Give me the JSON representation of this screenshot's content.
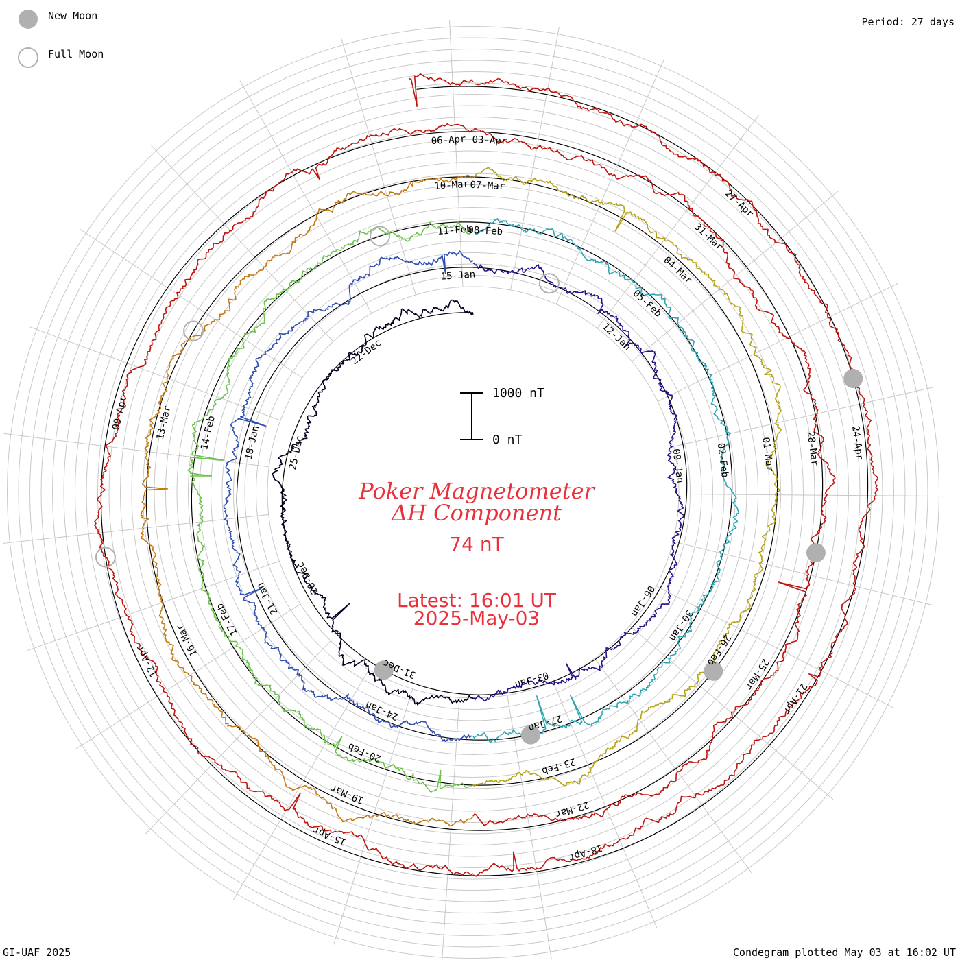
{
  "title": "Poker Magnetometer",
  "component": "ΔH Component",
  "current_value": "74 nT",
  "latest_time": "Latest: 16:01 UT",
  "latest_date": "2025-May-03",
  "period": "Period: 27 days",
  "credit": "GI-UAF 2025",
  "plotted": "Condegram plotted May 03 at 16:02 UT",
  "legend": {
    "new_moon": "New Moon",
    "full_moon": "Full Moon"
  },
  "scale": {
    "top": "1000 nT",
    "bottom": "0 nT"
  },
  "colors": {
    "text_red": "#e8313b",
    "moon_fill": "#b0b0b0",
    "grid": "#c8c8c8",
    "baseline": "#000000",
    "cycles": [
      "#000020",
      "#24128a",
      "#2e4fb0",
      "#2fa6b3",
      "#6cc24a",
      "#b5a319",
      "#c47a12",
      "#c0150f"
    ]
  },
  "chart_data": {
    "type": "condegram",
    "period_days": 27,
    "cycles": [
      {
        "start": "2024-12-19",
        "end": "2025-01-14",
        "date_labels": [
          "22-Dec",
          "25-Dec",
          "28-Dec",
          "31-Dec",
          "03-Jan",
          "06-Jan",
          "09-Jan",
          "12-Jan"
        ]
      },
      {
        "start": "2025-01-15",
        "end": "2025-02-10",
        "date_labels": [
          "15-Jan",
          "18-Jan",
          "21-Jan",
          "24-Jan",
          "27-Jan",
          "30-Jan",
          "02-Feb",
          "05-Feb",
          "08-Feb"
        ]
      },
      {
        "start": "2025-02-11",
        "end": "2025-03-09",
        "date_labels": [
          "11-Feb",
          "14-Feb",
          "17-Feb",
          "20-Feb",
          "23-Feb",
          "26-Feb",
          "01-Mar",
          "04-Mar",
          "07-Mar"
        ]
      },
      {
        "start": "2025-03-10",
        "end": "2025-04-05",
        "date_labels": [
          "10-Mar",
          "13-Mar",
          "16-Mar",
          "19-Mar",
          "22-Mar",
          "25-Mar",
          "28-Mar",
          "31-Mar",
          "03-Apr"
        ]
      },
      {
        "start": "2025-04-06",
        "end": "2025-05-03",
        "date_labels": [
          "06-Apr",
          "09-Apr",
          "12-Apr",
          "15-Apr",
          "18-Apr",
          "21-Apr",
          "24-Apr",
          "27-Apr"
        ]
      }
    ],
    "new_moons": [
      "2024-12-30",
      "2025-01-29",
      "2025-02-28",
      "2025-03-29",
      "2025-04-27"
    ],
    "full_moons": [
      "2025-01-13",
      "2025-02-12",
      "2025-03-14",
      "2025-04-13"
    ],
    "units": "nT",
    "scale_bar_nT": 1000
  }
}
